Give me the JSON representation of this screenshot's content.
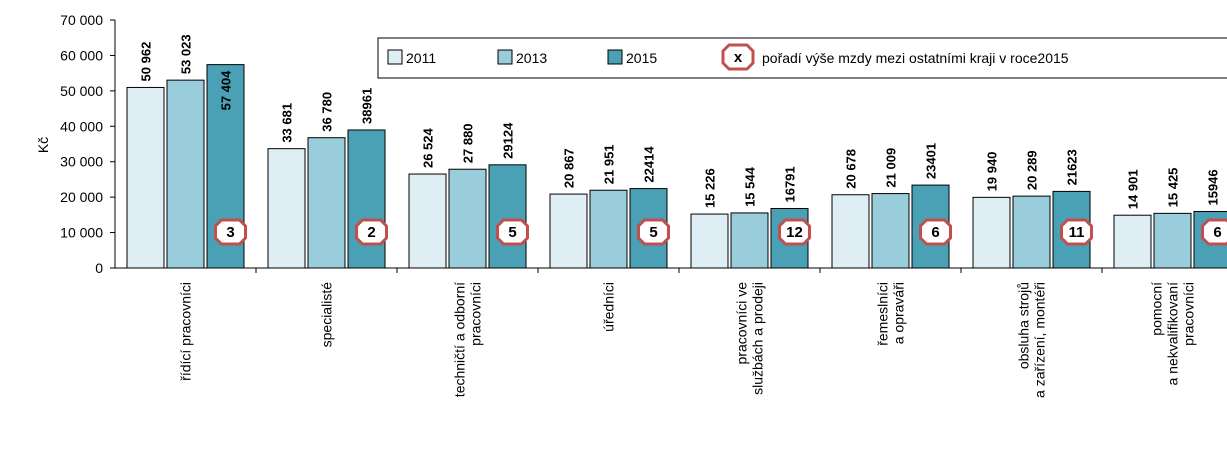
{
  "chart_data": {
    "type": "bar",
    "ylabel": "Kč",
    "categories": [
      "řídící pracovníci",
      "specialisté",
      "techničtí  a odborní\npracovníci",
      "úředníci",
      "pracovníci ve\nslužbách a prodeji",
      "řemeslníci\na opraváři",
      "obsluha strojů\na zařízení, montéři",
      "pomocní\na nekvalifikovaní\npracovníci"
    ],
    "series": [
      {
        "name": "2011",
        "color": "#deeef4",
        "values": [
          50962,
          33681,
          26524,
          20867,
          15226,
          20678,
          19940,
          14901
        ],
        "value_labels": [
          "50 962",
          "33 681",
          "26 524",
          "20 867",
          "15 226",
          "20 678",
          "19 940",
          "14 901"
        ]
      },
      {
        "name": "2013",
        "color": "#99cddb",
        "values": [
          53023,
          36780,
          27880,
          21951,
          15544,
          21009,
          20289,
          15425
        ],
        "value_labels": [
          "53 023",
          "36 780",
          "27 880",
          "21 951",
          "15 544",
          "21 009",
          "20 289",
          "15 425"
        ]
      },
      {
        "name": "2015",
        "color": "#4aa0b5",
        "values": [
          57404,
          38961,
          29124,
          22414,
          16791,
          23401,
          21623,
          15946
        ],
        "value_labels": [
          "57 404",
          "38961",
          "29124",
          "22414",
          "16791",
          "23401",
          "21623",
          "15946"
        ]
      }
    ],
    "ranks": [
      "3",
      "2",
      "5",
      "5",
      "12",
      "6",
      "11",
      "6"
    ],
    "rank_legend": {
      "symbol": "x",
      "text": "pořadí výše mzdy mezi ostatními kraji  v roce2015"
    },
    "rank_color": "#c0504d",
    "ylim": [
      0,
      70000
    ],
    "yticks": [
      0,
      {
        "value": 10000,
        "label": "10 000"
      },
      {
        "value": 20000,
        "label": "20 000"
      },
      {
        "value": 30000,
        "label": "30 000"
      },
      {
        "value": 40000,
        "label": "40 000"
      },
      {
        "value": 50000,
        "label": "50 000"
      },
      {
        "value": 60000,
        "label": "60 000"
      },
      {
        "value": 70000,
        "label": "70 000"
      }
    ],
    "grid": false
  }
}
